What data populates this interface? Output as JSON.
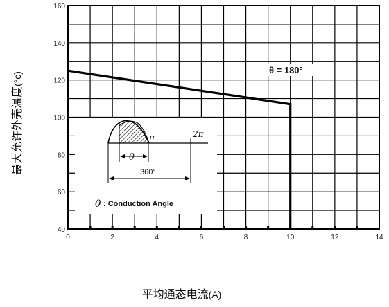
{
  "chart_data": {
    "type": "line",
    "xlabel": "平均通态电流",
    "xlabel_unit": "(A)",
    "ylabel": "最大允许外壳温度",
    "ylabel_unit": "(°c)",
    "xlim": [
      0,
      14
    ],
    "ylim": [
      40,
      160
    ],
    "x_ticks": [
      0,
      2,
      4,
      6,
      8,
      10,
      12,
      14
    ],
    "y_ticks": [
      40,
      60,
      80,
      100,
      120,
      140,
      160
    ],
    "grid": true,
    "series": [
      {
        "name": "θ = 180°",
        "color": "#000000",
        "points": [
          [
            0,
            125
          ],
          [
            10,
            107
          ],
          [
            10,
            40
          ]
        ]
      }
    ],
    "annotations": {
      "theta_label": "θ = 180°",
      "waveform": {
        "pi_label": "π",
        "two_pi_label": "2π",
        "theta_symbol": "θ",
        "span_label": "360°",
        "legend_symbol": "θ",
        "legend_text": ": Conduction Angle"
      }
    }
  }
}
